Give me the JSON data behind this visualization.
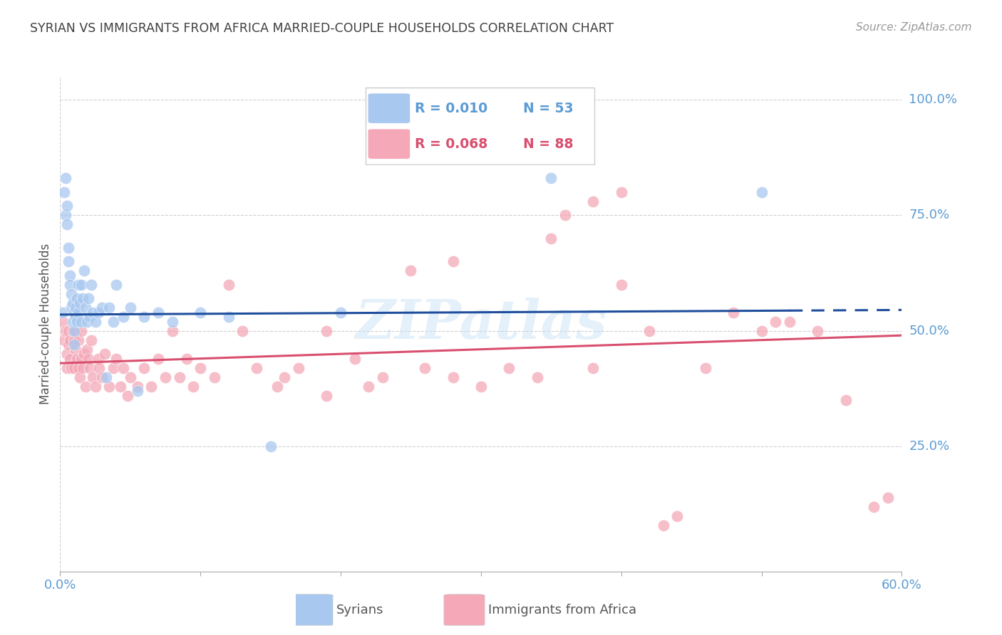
{
  "title": "SYRIAN VS IMMIGRANTS FROM AFRICA MARRIED-COUPLE HOUSEHOLDS CORRELATION CHART",
  "source": "Source: ZipAtlas.com",
  "ylabel": "Married-couple Households",
  "xlim": [
    0.0,
    0.6
  ],
  "ylim": [
    -0.02,
    1.05
  ],
  "background_color": "#ffffff",
  "grid_color": "#d0d0d0",
  "axis_color": "#5b9bd5",
  "title_color": "#404040",
  "watermark": "ZIPatlas",
  "color_blue": "#a8c8f0",
  "color_pink": "#f4a8b8",
  "line_blue": "#1f4e9c",
  "line_pink": "#d94f6e",
  "blue_line_y0": 0.535,
  "blue_line_y1": 0.545,
  "pink_line_y0": 0.43,
  "pink_line_y1": 0.49,
  "syrians_x": [
    0.002,
    0.003,
    0.004,
    0.004,
    0.005,
    0.005,
    0.006,
    0.006,
    0.007,
    0.007,
    0.008,
    0.008,
    0.009,
    0.009,
    0.01,
    0.01,
    0.01,
    0.011,
    0.011,
    0.012,
    0.012,
    0.013,
    0.013,
    0.014,
    0.015,
    0.015,
    0.016,
    0.017,
    0.018,
    0.019,
    0.02,
    0.021,
    0.022,
    0.023,
    0.025,
    0.027,
    0.03,
    0.033,
    0.035,
    0.038,
    0.04,
    0.045,
    0.05,
    0.055,
    0.06,
    0.07,
    0.08,
    0.1,
    0.12,
    0.15,
    0.2,
    0.35,
    0.5
  ],
  "syrians_y": [
    0.54,
    0.8,
    0.83,
    0.75,
    0.77,
    0.73,
    0.68,
    0.65,
    0.62,
    0.6,
    0.55,
    0.58,
    0.56,
    0.52,
    0.54,
    0.5,
    0.47,
    0.53,
    0.55,
    0.52,
    0.57,
    0.54,
    0.6,
    0.56,
    0.52,
    0.6,
    0.57,
    0.63,
    0.55,
    0.52,
    0.57,
    0.53,
    0.6,
    0.54,
    0.52,
    0.54,
    0.55,
    0.4,
    0.55,
    0.52,
    0.6,
    0.53,
    0.55,
    0.37,
    0.53,
    0.54,
    0.52,
    0.54,
    0.53,
    0.25,
    0.54,
    0.83,
    0.8
  ],
  "africa_x": [
    0.002,
    0.003,
    0.004,
    0.005,
    0.005,
    0.006,
    0.006,
    0.007,
    0.007,
    0.008,
    0.009,
    0.01,
    0.01,
    0.011,
    0.011,
    0.012,
    0.013,
    0.013,
    0.014,
    0.015,
    0.015,
    0.016,
    0.017,
    0.018,
    0.019,
    0.02,
    0.021,
    0.022,
    0.023,
    0.025,
    0.027,
    0.028,
    0.03,
    0.032,
    0.035,
    0.038,
    0.04,
    0.043,
    0.045,
    0.048,
    0.05,
    0.055,
    0.06,
    0.065,
    0.07,
    0.075,
    0.08,
    0.085,
    0.09,
    0.095,
    0.1,
    0.11,
    0.12,
    0.13,
    0.14,
    0.155,
    0.17,
    0.19,
    0.21,
    0.23,
    0.26,
    0.28,
    0.3,
    0.32,
    0.34,
    0.36,
    0.38,
    0.4,
    0.42,
    0.43,
    0.44,
    0.46,
    0.48,
    0.5,
    0.51,
    0.52,
    0.54,
    0.56,
    0.58,
    0.59,
    0.4,
    0.38,
    0.35,
    0.28,
    0.25,
    0.22,
    0.19,
    0.16
  ],
  "africa_y": [
    0.52,
    0.48,
    0.5,
    0.45,
    0.42,
    0.5,
    0.47,
    0.44,
    0.48,
    0.42,
    0.5,
    0.48,
    0.42,
    0.46,
    0.5,
    0.44,
    0.42,
    0.48,
    0.4,
    0.44,
    0.5,
    0.42,
    0.45,
    0.38,
    0.46,
    0.44,
    0.42,
    0.48,
    0.4,
    0.38,
    0.44,
    0.42,
    0.4,
    0.45,
    0.38,
    0.42,
    0.44,
    0.38,
    0.42,
    0.36,
    0.4,
    0.38,
    0.42,
    0.38,
    0.44,
    0.4,
    0.5,
    0.4,
    0.44,
    0.38,
    0.42,
    0.4,
    0.6,
    0.5,
    0.42,
    0.38,
    0.42,
    0.5,
    0.44,
    0.4,
    0.42,
    0.4,
    0.38,
    0.42,
    0.4,
    0.75,
    0.42,
    0.6,
    0.5,
    0.08,
    0.1,
    0.42,
    0.54,
    0.5,
    0.52,
    0.52,
    0.5,
    0.35,
    0.12,
    0.14,
    0.8,
    0.78,
    0.7,
    0.65,
    0.63,
    0.38,
    0.36,
    0.4
  ]
}
